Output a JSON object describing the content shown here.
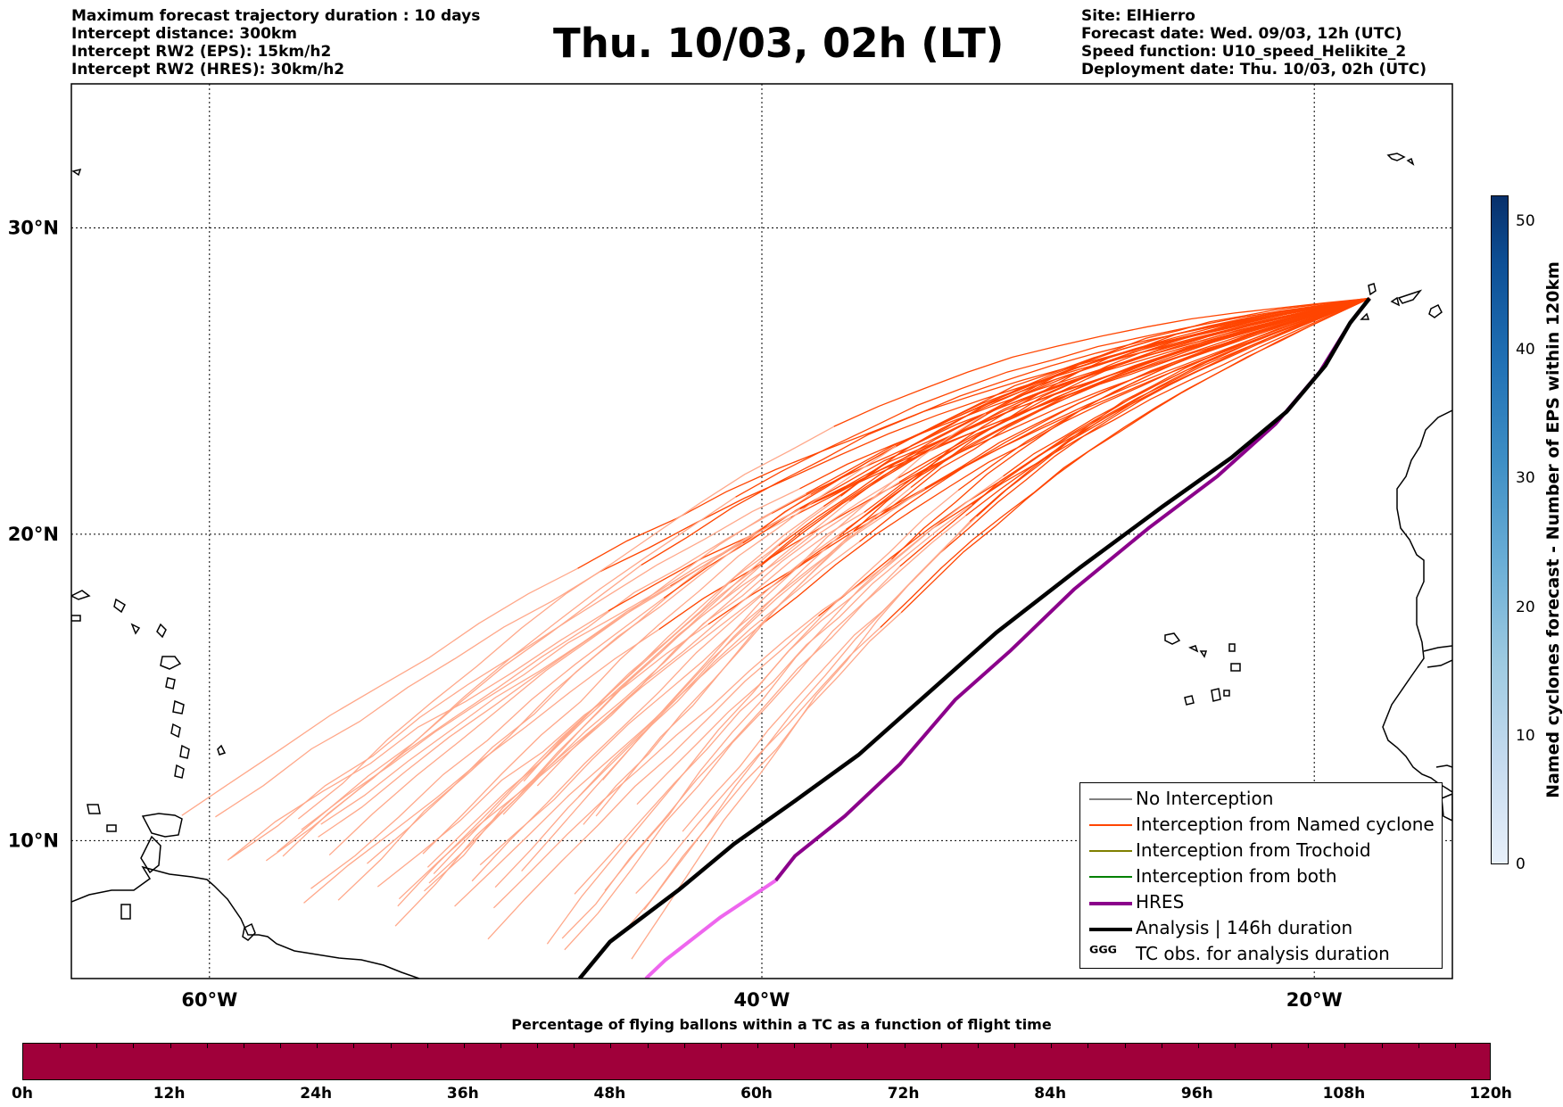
{
  "header": {
    "left_lines": [
      "Maximum forecast trajectory duration : 10 days",
      "Intercept distance: 300km",
      "Intercept RW2 (EPS):  15km/h2",
      "Intercept RW2 (HRES): 30km/h2"
    ],
    "right_lines": [
      "Site: ElHierro",
      "Forecast date: Wed. 09/03, 12h (UTC)",
      "Speed function: U10_speed_Helikite_2",
      "Deployment date: Thu. 10/03, 02h (UTC)"
    ],
    "title": "Thu. 10/03, 02h (LT)"
  },
  "map": {
    "lon_range": [
      -65,
      -15
    ],
    "lat_range": [
      5.5,
      34.7
    ],
    "lon_ticks": [
      {
        "value": -60,
        "label": "60°W"
      },
      {
        "value": -40,
        "label": "40°W"
      },
      {
        "value": -20,
        "label": "20°W"
      }
    ],
    "lat_ticks": [
      {
        "value": 30,
        "label": "30°N"
      },
      {
        "value": 20,
        "label": "20°N"
      },
      {
        "value": 10,
        "label": "10°N"
      }
    ],
    "launch_site": {
      "lon": -18.0,
      "lat": 27.7
    },
    "colors": {
      "ensemble": "#ff4500",
      "ensemble_faded": "#ffa88a",
      "hres": "#8b008b",
      "hres_faded": "#ee66ee",
      "analysis": "#000000"
    },
    "ensemble_members": 50,
    "analysis_track": [
      [
        -18.0,
        27.7
      ],
      [
        -18.7,
        26.9
      ],
      [
        -19.6,
        25.5
      ],
      [
        -21.0,
        24.0
      ],
      [
        -23.0,
        22.5
      ],
      [
        -25.5,
        20.9
      ],
      [
        -28.5,
        18.9
      ],
      [
        -31.5,
        16.8
      ],
      [
        -34.0,
        14.8
      ],
      [
        -36.5,
        12.8
      ],
      [
        -38.8,
        11.3
      ],
      [
        -41.0,
        9.9
      ],
      [
        -43.0,
        8.4
      ],
      [
        -45.5,
        6.7
      ],
      [
        -46.6,
        5.5
      ]
    ],
    "hres_track": [
      [
        -18.0,
        27.7
      ],
      [
        -18.7,
        26.9
      ],
      [
        -19.8,
        25.3
      ],
      [
        -21.4,
        23.6
      ],
      [
        -23.5,
        21.9
      ],
      [
        -26.0,
        20.2
      ],
      [
        -28.7,
        18.2
      ],
      [
        -31.0,
        16.2
      ],
      [
        -33.0,
        14.6
      ],
      [
        -35.0,
        12.5
      ],
      [
        -37.0,
        10.8
      ],
      [
        -38.8,
        9.5
      ],
      [
        -39.5,
        8.7
      ],
      [
        -41.5,
        7.5
      ],
      [
        -43.5,
        6.1
      ],
      [
        -44.2,
        5.5
      ]
    ],
    "hres_fade_index": 12
  },
  "legend": [
    {
      "label": "No Interception",
      "style": "thin",
      "color": "#808080"
    },
    {
      "label": "Interception from Named cyclone",
      "style": "thin",
      "color": "#ff4500"
    },
    {
      "label": "Interception from Trochoid",
      "style": "thin",
      "color": "#808000"
    },
    {
      "label": "Interception from both",
      "style": "thin",
      "color": "#008000"
    },
    {
      "label": "HRES",
      "style": "thick",
      "color": "#8b008b"
    },
    {
      "label": "Analysis | 146h duration",
      "style": "thick",
      "color": "#000000"
    },
    {
      "label": "TC obs. for analysis duration",
      "style": "symbol",
      "symbol": "ᴳᴳᴳ",
      "color": "#000000"
    }
  ],
  "colorbar": {
    "title": "Named cyclones forecast - Number of EPS within 120km",
    "min": 0,
    "max": 52,
    "ticks": [
      0,
      10,
      20,
      30,
      40,
      50
    ]
  },
  "time_strip": {
    "title": "Percentage of flying ballons within a TC as a function of flight time",
    "color": "#a0003a",
    "labels": [
      "0h",
      "12h",
      "24h",
      "36h",
      "48h",
      "60h",
      "72h",
      "84h",
      "96h",
      "108h",
      "120h"
    ],
    "max_hours": 120
  }
}
